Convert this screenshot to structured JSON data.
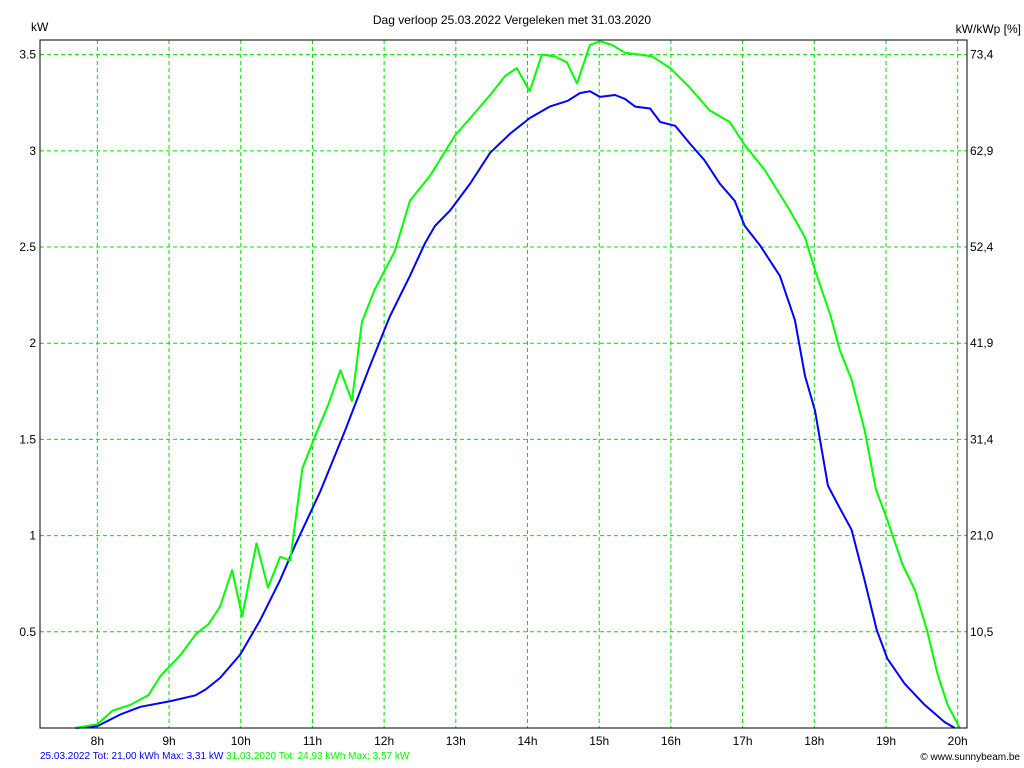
{
  "chart_data": {
    "type": "line",
    "title": "Dag  verloop 25.03.2022   Vergeleken met 31.03.2020",
    "ylabel": "kW",
    "ylabel_right": "kW/kWp [%]",
    "xlabel": "",
    "xlim": [
      7.2,
      20.13
    ],
    "ylim": [
      0,
      3.576
    ],
    "grid": true,
    "x_ticks": [
      "8h",
      "9h",
      "10h",
      "11h",
      "12h",
      "13h",
      "14h",
      "15h",
      "16h",
      "17h",
      "18h",
      "19h",
      "20h"
    ],
    "y_ticks": [
      "0.5",
      "1",
      "1.5",
      "2",
      "2.5",
      "3",
      "3.5"
    ],
    "y_right_ticks": [
      "10,5",
      "21,0",
      "31,4",
      "41,9",
      "52,4",
      "62,9",
      "73,4"
    ],
    "series": [
      {
        "name": "25.03.2022",
        "color": "#0000ff",
        "x": [
          7.69,
          8.0,
          8.32,
          8.6,
          9.02,
          9.37,
          9.51,
          9.71,
          9.99,
          10.27,
          10.55,
          10.76,
          11.11,
          11.46,
          11.8,
          12.08,
          12.36,
          12.57,
          12.71,
          12.92,
          13.2,
          13.48,
          13.76,
          14.03,
          14.31,
          14.56,
          14.73,
          14.87,
          15.01,
          15.22,
          15.36,
          15.5,
          15.71,
          15.85,
          16.06,
          16.26,
          16.47,
          16.68,
          16.89,
          17.03,
          17.24,
          17.52,
          17.73,
          17.87,
          18.01,
          18.19,
          18.36,
          18.52,
          18.7,
          18.87,
          19.02,
          19.26,
          19.54,
          19.82,
          19.96
        ],
        "y": [
          0,
          0.01,
          0.07,
          0.11,
          0.14,
          0.17,
          0.2,
          0.26,
          0.38,
          0.56,
          0.77,
          0.95,
          1.23,
          1.55,
          1.88,
          2.14,
          2.35,
          2.52,
          2.61,
          2.69,
          2.83,
          2.99,
          3.09,
          3.17,
          3.23,
          3.26,
          3.3,
          3.31,
          3.28,
          3.29,
          3.27,
          3.23,
          3.22,
          3.15,
          3.13,
          3.04,
          2.95,
          2.83,
          2.74,
          2.61,
          2.51,
          2.35,
          2.12,
          1.83,
          1.65,
          1.26,
          1.14,
          1.03,
          0.77,
          0.51,
          0.36,
          0.23,
          0.12,
          0.03,
          0
        ]
      },
      {
        "name": "31.03.2020",
        "color": "#00ff00",
        "x": [
          7.69,
          8.0,
          8.21,
          8.46,
          8.71,
          8.88,
          9.16,
          9.38,
          9.55,
          9.71,
          9.88,
          10.02,
          10.22,
          10.38,
          10.55,
          10.69,
          10.86,
          11.04,
          11.22,
          11.39,
          11.55,
          11.69,
          11.87,
          12.15,
          12.36,
          12.64,
          12.99,
          13.2,
          13.48,
          13.69,
          13.85,
          14.03,
          14.2,
          14.38,
          14.55,
          14.69,
          14.87,
          15.01,
          15.18,
          15.36,
          15.57,
          15.74,
          15.99,
          16.26,
          16.54,
          16.82,
          17.03,
          17.31,
          17.66,
          17.87,
          18.01,
          18.22,
          18.36,
          18.52,
          18.7,
          18.86,
          19.02,
          19.23,
          19.4,
          19.57,
          19.72,
          19.86,
          20.03
        ],
        "y": [
          0,
          0.02,
          0.09,
          0.12,
          0.17,
          0.27,
          0.38,
          0.49,
          0.54,
          0.63,
          0.82,
          0.58,
          0.96,
          0.73,
          0.89,
          0.87,
          1.35,
          1.52,
          1.68,
          1.86,
          1.7,
          2.11,
          2.28,
          2.48,
          2.74,
          2.87,
          3.08,
          3.17,
          3.29,
          3.39,
          3.43,
          3.31,
          3.5,
          3.49,
          3.46,
          3.35,
          3.55,
          3.57,
          3.55,
          3.51,
          3.5,
          3.49,
          3.43,
          3.33,
          3.21,
          3.15,
          3.03,
          2.9,
          2.69,
          2.55,
          2.38,
          2.15,
          1.96,
          1.81,
          1.55,
          1.24,
          1.08,
          0.85,
          0.72,
          0.51,
          0.28,
          0.12,
          0
        ]
      }
    ]
  },
  "legend": {
    "series1": "25.03.2022 Tot: 21,00 kWh Max: 3,31 kW",
    "series2": "31.03.2020 Tot: 24,93 kWh Max: 3,57 kW"
  },
  "credit": "© www.sunnybeam.be"
}
